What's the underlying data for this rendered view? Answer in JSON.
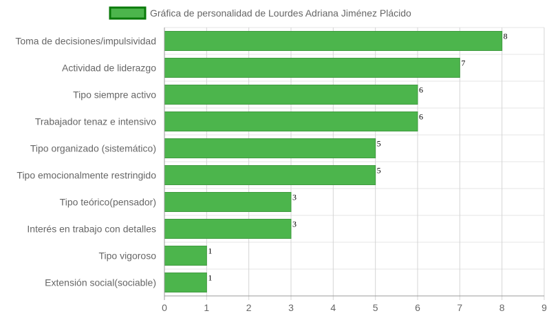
{
  "chart_data": {
    "type": "bar",
    "orientation": "horizontal",
    "categories": [
      "Toma de decisiones/impulsividad",
      "Actividad de liderazgo",
      "Tipo siempre activo",
      "Trabajador tenaz e intensivo",
      "Tipo organizado (sistemático)",
      "Tipo emocionalmente restringido",
      "Tipo teórico(pensador)",
      "Interés en trabajo con detalles",
      "Tipo vigoroso",
      "Extensión social(sociable)"
    ],
    "series": [
      {
        "name": "Gráfica de personalidad de Lourdes Adriana Jiménez Plácido",
        "values": [
          8,
          7,
          6,
          6,
          5,
          5,
          3,
          3,
          1,
          1
        ]
      }
    ],
    "xlim": [
      0,
      9
    ],
    "x_ticks": [
      "0",
      "1",
      "2",
      "3",
      "4",
      "5",
      "6",
      "7",
      "8",
      "9"
    ],
    "grid": true,
    "legend_position": "top",
    "data_labels": true,
    "colors": {
      "bar_fill": "#4cb54c",
      "bar_border": "#3f9a3f",
      "legend_border": "#0a7a0a",
      "grid": "#e4e4e4",
      "axis": "#999999"
    }
  }
}
